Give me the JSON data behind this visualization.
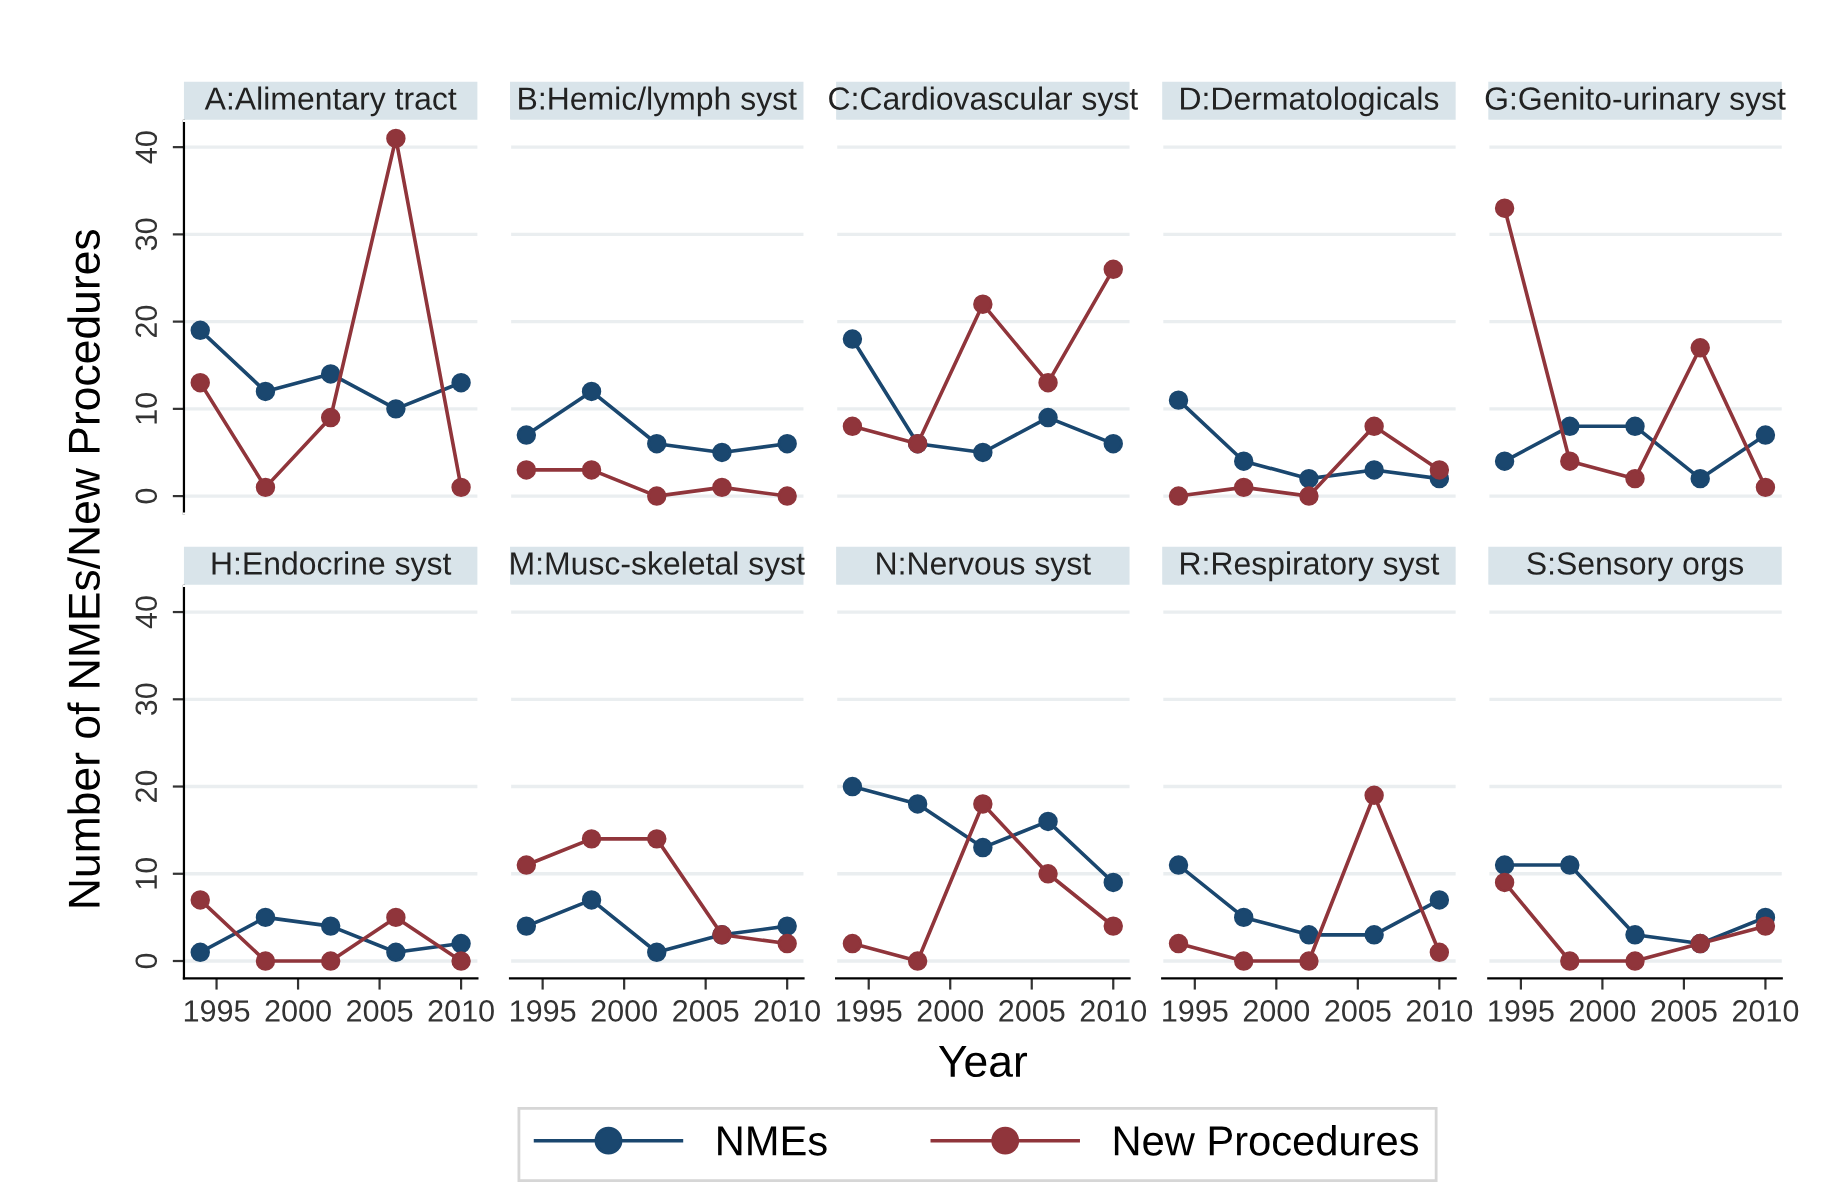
{
  "chart_data": [
    {
      "type": "line",
      "title": "A:Alimentary tract",
      "ylabel": "Number of NMEs/New Procedures",
      "legend": "bottom",
      "x": [
        1994,
        1998,
        2002,
        2006,
        2010
      ],
      "xlim": [
        1993,
        2011
      ],
      "ylim": [
        -2,
        43
      ],
      "xticks": [
        1995,
        2000,
        2005,
        2010
      ],
      "yticks": [
        0,
        10,
        20,
        30,
        40
      ],
      "grid": "y",
      "marker": "circle",
      "tick_labels": "y",
      "series": [
        {
          "name": "NMEs",
          "color": "#1a476f",
          "values": [
            19,
            12,
            14,
            10,
            13
          ]
        },
        {
          "name": "New Procedures",
          "color": "#90353b",
          "values": [
            13,
            1,
            9,
            41,
            1
          ]
        }
      ]
    },
    {
      "type": "line",
      "title": "H:Endocrine syst",
      "x": [
        1994,
        1998,
        2002,
        2006,
        2010
      ],
      "xlim": [
        1993,
        2011
      ],
      "ylim": [
        -2,
        43
      ],
      "xticks": [
        1995,
        2000,
        2005,
        2010
      ],
      "yticks": [
        0,
        10,
        20,
        30,
        40
      ],
      "grid": "y",
      "marker": "circle",
      "series": [
        {
          "name": "NMEs",
          "color": "#1a476f",
          "values": [
            1,
            5,
            4,
            1,
            2
          ]
        },
        {
          "name": "New Procedures",
          "color": "#90353b",
          "values": [
            7,
            0,
            0,
            5,
            0
          ]
        }
      ]
    },
    {
      "type": "line",
      "title": "B:Hemic/lymph syst",
      "x": [
        1994,
        1998,
        2002,
        2006,
        2010
      ],
      "xlim": [
        1993,
        2011
      ],
      "ylim": [
        -2,
        43
      ],
      "xticks": [
        1995,
        2000,
        2005,
        2010
      ],
      "yticks": [
        0,
        10,
        20,
        30,
        40
      ],
      "grid": "y",
      "marker": "circle",
      "tick_labels": false,
      "series": [
        {
          "name": "NMEs",
          "color": "#1a476f",
          "values": [
            7,
            12,
            6,
            5,
            6
          ]
        },
        {
          "name": "New Procedures",
          "color": "#90353b",
          "values": [
            3,
            3,
            0,
            1,
            0
          ]
        }
      ]
    },
    {
      "type": "line",
      "title": "M:Musc-skeletal syst",
      "x": [
        1994,
        1998,
        2002,
        2006,
        2010
      ],
      "xlim": [
        1993,
        2011
      ],
      "ylim": [
        -2,
        43
      ],
      "xticks": [
        1995,
        2000,
        2005,
        2010
      ],
      "yticks": [
        0,
        10,
        20,
        30,
        40
      ],
      "grid": "y",
      "marker": "circle",
      "tick_labels": "x",
      "series": [
        {
          "name": "NMEs",
          "color": "#1a476f",
          "values": [
            4,
            7,
            1,
            3,
            4
          ]
        },
        {
          "name": "New Procedures",
          "color": "#90353b",
          "values": [
            11,
            14,
            14,
            3,
            2
          ]
        }
      ]
    },
    {
      "type": "line",
      "title": "C:Cardiovascular syst",
      "x": [
        1994,
        1998,
        2002,
        2006,
        2010
      ],
      "xlim": [
        1993,
        2011
      ],
      "ylim": [
        -2,
        43
      ],
      "xticks": [
        1995,
        2000,
        2005,
        2010
      ],
      "yticks": [
        0,
        10,
        20,
        30,
        40
      ],
      "grid": "y",
      "marker": "circle",
      "tick_labels": false,
      "series": [
        {
          "name": "NMEs",
          "color": "#1a476f",
          "values": [
            18,
            6,
            5,
            9,
            6
          ]
        },
        {
          "name": "New Procedures",
          "color": "#90353b",
          "values": [
            8,
            6,
            22,
            13,
            26
          ]
        }
      ]
    },
    {
      "type": "line",
      "title": "N:Nervous syst",
      "xlabel": "Year",
      "x": [
        1994,
        1998,
        2002,
        2006,
        2010
      ],
      "xlim": [
        1993,
        2011
      ],
      "ylim": [
        -2,
        43
      ],
      "xticks": [
        1995,
        2000,
        2005,
        2010
      ],
      "yticks": [
        0,
        10,
        20,
        30,
        40
      ],
      "grid": "y",
      "marker": "circle",
      "tick_labels": "x",
      "series": [
        {
          "name": "NMEs",
          "color": "#1a476f",
          "values": [
            20,
            18,
            13,
            16,
            9
          ]
        },
        {
          "name": "New Procedures",
          "color": "#90353b",
          "values": [
            2,
            0,
            18,
            10,
            4
          ]
        }
      ]
    },
    {
      "type": "line",
      "title": "D:Dermatologicals",
      "x": [
        1994,
        1998,
        2002,
        2006,
        2010
      ],
      "xlim": [
        1993,
        2011
      ],
      "ylim": [
        -2,
        43
      ],
      "xticks": [
        1995,
        2000,
        2005,
        2010
      ],
      "yticks": [
        0,
        10,
        20,
        30,
        40
      ],
      "grid": "y",
      "marker": "circle",
      "tick_labels": false,
      "series": [
        {
          "name": "NMEs",
          "color": "#1a476f",
          "values": [
            11,
            4,
            2,
            3,
            2
          ]
        },
        {
          "name": "New Procedures",
          "color": "#90353b",
          "values": [
            0,
            1,
            0,
            8,
            3
          ]
        }
      ]
    },
    {
      "type": "line",
      "title": "R:Respiratory syst",
      "x": [
        1994,
        1998,
        2002,
        2006,
        2010
      ],
      "xlim": [
        1993,
        2011
      ],
      "ylim": [
        -2,
        43
      ],
      "xticks": [
        1995,
        2000,
        2005,
        2010
      ],
      "yticks": [
        0,
        10,
        20,
        30,
        40
      ],
      "grid": "y",
      "marker": "circle",
      "tick_labels": "x",
      "series": [
        {
          "name": "NMEs",
          "color": "#1a476f",
          "values": [
            11,
            5,
            3,
            3,
            7
          ]
        },
        {
          "name": "New Procedures",
          "color": "#90353b",
          "values": [
            2,
            0,
            0,
            19,
            1
          ]
        }
      ]
    },
    {
      "type": "line",
      "title": "G:Genito-urinary syst",
      "x": [
        1994,
        1998,
        2002,
        2006,
        2010
      ],
      "xlim": [
        1993,
        2011
      ],
      "ylim": [
        -2,
        43
      ],
      "xticks": [
        1995,
        2000,
        2005,
        2010
      ],
      "yticks": [
        0,
        10,
        20,
        30,
        40
      ],
      "grid": "y",
      "marker": "circle",
      "tick_labels": false,
      "series": [
        {
          "name": "NMEs",
          "color": "#1a476f",
          "values": [
            4,
            8,
            8,
            2,
            7
          ]
        },
        {
          "name": "New Procedures",
          "color": "#90353b",
          "values": [
            33,
            4,
            2,
            17,
            1
          ]
        }
      ]
    },
    {
      "type": "line",
      "title": "S:Sensory orgs",
      "x": [
        1994,
        1998,
        2002,
        2006,
        2010
      ],
      "xlim": [
        1993,
        2011
      ],
      "ylim": [
        -2,
        43
      ],
      "xticks": [
        1995,
        2000,
        2005,
        2010
      ],
      "yticks": [
        0,
        10,
        20,
        30,
        40
      ],
      "grid": "y",
      "marker": "circle",
      "tick_labels": "x",
      "series": [
        {
          "name": "NMEs",
          "color": "#1a476f",
          "values": [
            11,
            11,
            3,
            2,
            5
          ]
        },
        {
          "name": "New Procedures",
          "color": "#90353b",
          "values": [
            9,
            0,
            0,
            2,
            4
          ]
        }
      ]
    }
  ]
}
